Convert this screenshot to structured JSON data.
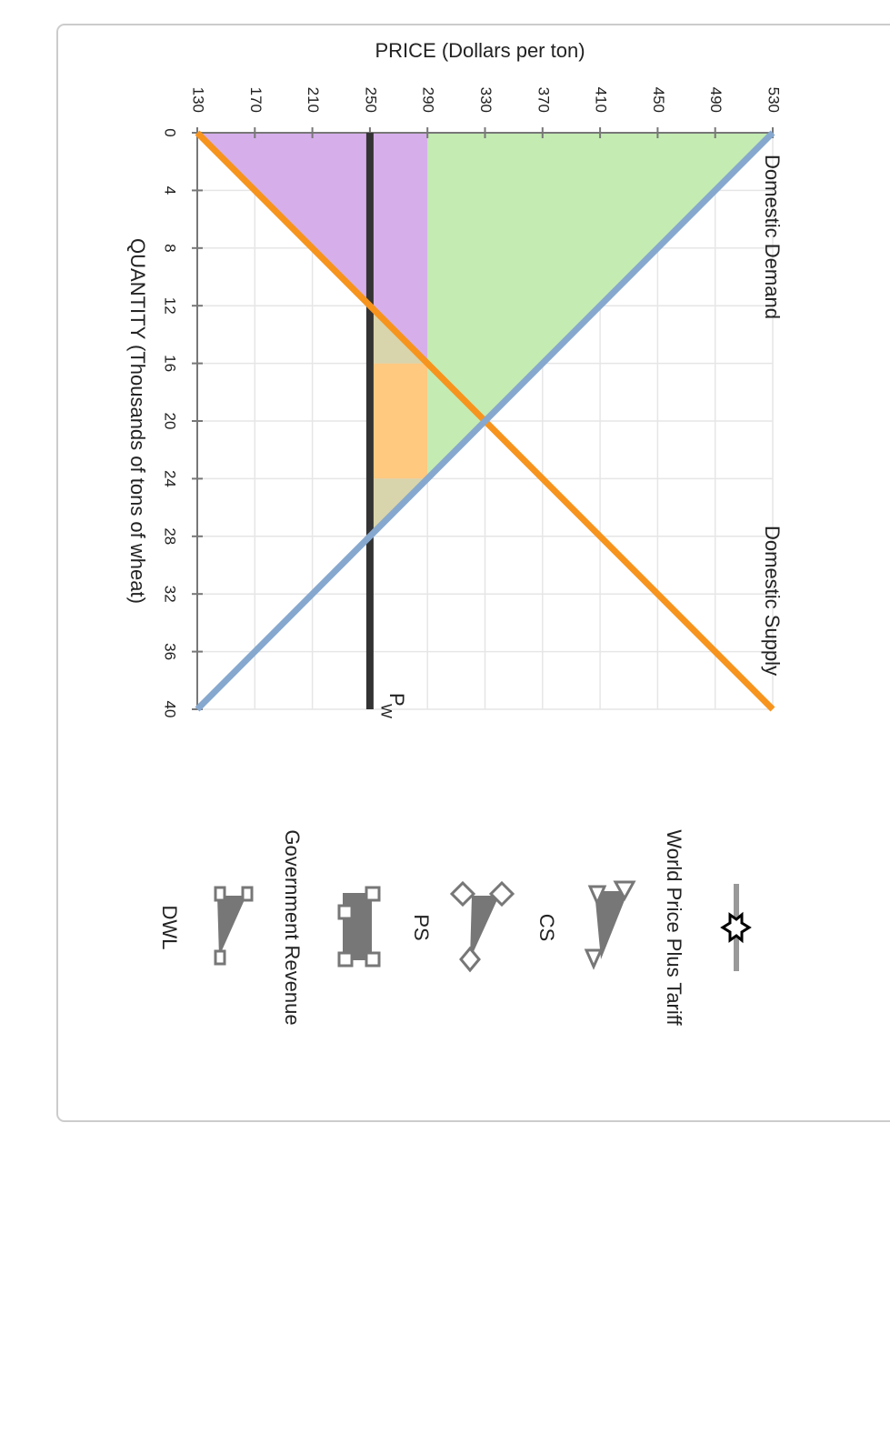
{
  "chart_data": {
    "type": "line",
    "xlabel": "QUANTITY (Thousands of tons of wheat)",
    "ylabel": "PRICE (Dollars per ton)",
    "xlim": [
      0,
      40
    ],
    "xticks": [
      0,
      4,
      8,
      12,
      16,
      20,
      24,
      28,
      32,
      36,
      40
    ],
    "ylim": [
      130,
      530
    ],
    "yticks": [
      130,
      170,
      210,
      250,
      290,
      330,
      370,
      410,
      450,
      490,
      530
    ],
    "grid": true,
    "series": [
      {
        "name": "Domestic Demand",
        "color": "#86a8cf",
        "x": [
          0,
          40
        ],
        "values": [
          530,
          130
        ]
      },
      {
        "name": "Domestic Supply",
        "color": "#f7941d",
        "x": [
          0,
          40
        ],
        "values": [
          130,
          530
        ]
      },
      {
        "name": "P",
        "subscript": "W",
        "color": "#333333",
        "x": [
          0,
          40
        ],
        "values": [
          250,
          250
        ]
      }
    ],
    "areas": [
      {
        "color": "#c4ebb2",
        "x": [
          0,
          0,
          24
        ],
        "y": [
          530,
          290,
          290
        ]
      },
      {
        "color": "#d6afea",
        "x": [
          0,
          16,
          0
        ],
        "y": [
          130,
          290,
          290
        ]
      },
      {
        "color": "#ffc980",
        "x": [
          16,
          24,
          24,
          16
        ],
        "y": [
          250,
          250,
          290,
          290
        ]
      },
      {
        "color": "#d8d4ab",
        "x": [
          12,
          16,
          16
        ],
        "y": [
          250,
          250,
          290
        ]
      },
      {
        "color": "#d8d4ab",
        "x": [
          24,
          28,
          24
        ],
        "y": [
          250,
          250,
          290
        ]
      }
    ],
    "legend": [
      "World Price Plus Tariff",
      "CS",
      "PS",
      "Government Revenue",
      "DWL"
    ]
  }
}
